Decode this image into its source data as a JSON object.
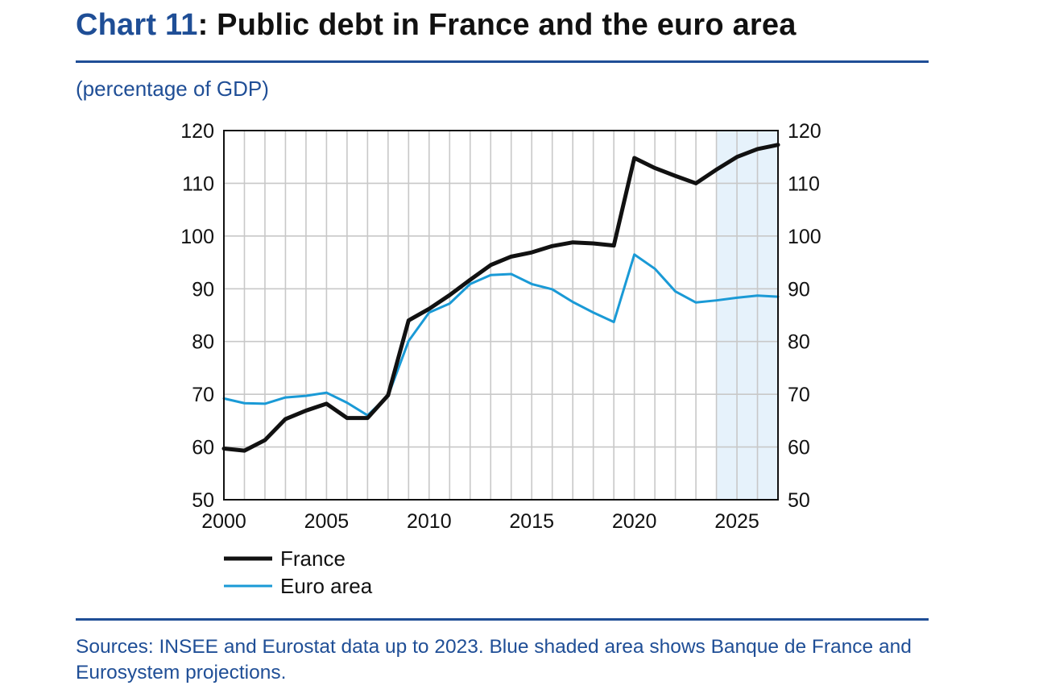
{
  "header": {
    "title_number": "Chart 11",
    "title_text": ": Public debt in France and the euro area",
    "unit": "(percentage of GDP)"
  },
  "footer": {
    "sources": "Sources: INSEE and Eurostat data up to 2023. Blue shaded area shows Banque de France and Eurosystem projections."
  },
  "colors": {
    "accent": "#1f4e96",
    "france": "#111111",
    "euro_area": "#1a9ad6",
    "projection_shade": "#e6f2fb",
    "grid": "#c8c8c8"
  },
  "chart_data": {
    "type": "line",
    "title": "Public debt in France and the euro area",
    "ylabel": "(percentage of GDP)",
    "xlabel": "",
    "xlim": [
      2000,
      2027
    ],
    "ylim": [
      50,
      120
    ],
    "x_ticks": [
      2000,
      2005,
      2010,
      2015,
      2020,
      2025
    ],
    "y_ticks": [
      50,
      60,
      70,
      80,
      90,
      100,
      110,
      120
    ],
    "grid": true,
    "dual_y_axis": true,
    "projection_shade": [
      2024,
      2027
    ],
    "legend_position": "bottom-left",
    "x": [
      2000,
      2001,
      2002,
      2003,
      2004,
      2005,
      2006,
      2007,
      2008,
      2009,
      2010,
      2011,
      2012,
      2013,
      2014,
      2015,
      2016,
      2017,
      2018,
      2019,
      2020,
      2021,
      2022,
      2023,
      2024,
      2025,
      2026,
      2027
    ],
    "series": [
      {
        "name": "France",
        "values": [
          59.7,
          59.3,
          61.3,
          65.3,
          66.9,
          68.2,
          65.5,
          65.5,
          69.8,
          84.0,
          86.2,
          88.8,
          91.7,
          94.5,
          96.1,
          96.9,
          98.1,
          98.8,
          98.6,
          98.2,
          114.8,
          112.9,
          111.4,
          110.0,
          112.6,
          115.0,
          116.5,
          117.3
        ]
      },
      {
        "name": "Euro area",
        "values": [
          69.2,
          68.3,
          68.2,
          69.4,
          69.7,
          70.3,
          68.4,
          66.0,
          69.7,
          80.1,
          85.5,
          87.2,
          90.9,
          92.6,
          92.8,
          90.9,
          89.9,
          87.5,
          85.5,
          83.7,
          96.5,
          93.8,
          89.5,
          87.4,
          87.8,
          88.3,
          88.7,
          88.5
        ]
      }
    ]
  }
}
